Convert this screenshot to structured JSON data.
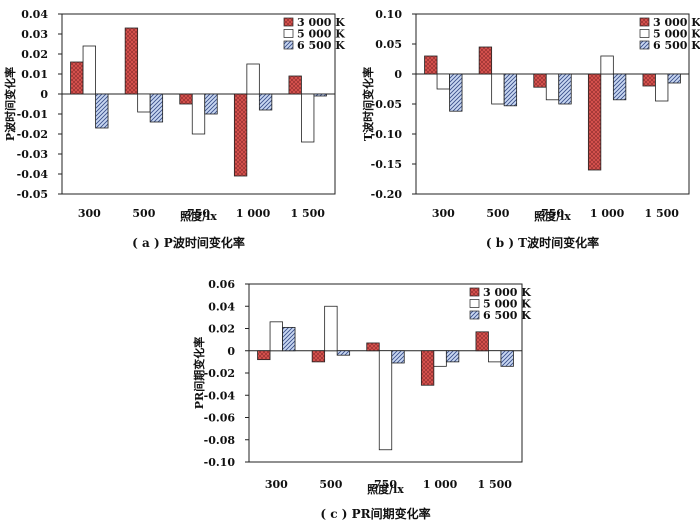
{
  "series_styles": [
    {
      "fill": "#d9534f",
      "pattern": "cross"
    },
    {
      "fill": "#ffffff",
      "pattern": "none"
    },
    {
      "fill": "#c9d8f2",
      "pattern": "diag"
    }
  ],
  "chart_data": [
    {
      "type": "bar",
      "id": "a",
      "caption": "( a ) P波时间变化率",
      "xlabel": "照度/lx",
      "ylabel": "P波时间变化率",
      "categories": [
        "300",
        "500",
        "750",
        "1 000",
        "1 500"
      ],
      "series": [
        {
          "name": "3 000 K",
          "values": [
            0.016,
            0.033,
            -0.005,
            -0.041,
            0.009
          ]
        },
        {
          "name": "5 000 K",
          "values": [
            0.024,
            -0.009,
            -0.02,
            0.015,
            -0.024
          ]
        },
        {
          "name": "6 500 K",
          "values": [
            -0.017,
            -0.014,
            -0.01,
            -0.008,
            -0.001
          ]
        }
      ],
      "ylim": [
        -0.05,
        0.04
      ],
      "yticks": [
        0.04,
        0.03,
        0.02,
        0.01,
        0,
        -0.01,
        -0.02,
        -0.03,
        -0.04,
        -0.05
      ],
      "ytick_labels": [
        "0.04",
        "0.03",
        "0.02",
        "0.01",
        "0",
        "-0.01",
        "-0.02",
        "-0.03",
        "-0.04",
        "-0.05"
      ],
      "legend": "top-right"
    },
    {
      "type": "bar",
      "id": "b",
      "caption": "( b ) T波时间变化率",
      "xlabel": "照度/lx",
      "ylabel": "T波时间变化率",
      "categories": [
        "300",
        "500",
        "750",
        "1 000",
        "1 500"
      ],
      "series": [
        {
          "name": "3 000 K",
          "values": [
            0.03,
            0.045,
            -0.022,
            -0.16,
            -0.02
          ]
        },
        {
          "name": "5 000 K",
          "values": [
            -0.025,
            -0.05,
            -0.043,
            0.03,
            -0.045
          ]
        },
        {
          "name": "6 500 K",
          "values": [
            -0.062,
            -0.053,
            -0.05,
            -0.043,
            -0.015
          ]
        }
      ],
      "ylim": [
        -0.2,
        0.1
      ],
      "yticks": [
        0.1,
        0.05,
        0,
        -0.05,
        -0.1,
        -0.15,
        -0.2
      ],
      "ytick_labels": [
        "0.10",
        "0.05",
        "0",
        "-0.05",
        "-0.10",
        "-0.15",
        "-0.20"
      ],
      "legend": "top-right"
    },
    {
      "type": "bar",
      "id": "c",
      "caption": "( c ) PR间期变化率",
      "xlabel": "照度/lx",
      "ylabel": "PR间期变化率",
      "categories": [
        "300",
        "500",
        "750",
        "1 000",
        "1 500"
      ],
      "series": [
        {
          "name": "3 000 K",
          "values": [
            -0.008,
            -0.01,
            0.007,
            -0.031,
            0.017
          ]
        },
        {
          "name": "5 000 K",
          "values": [
            0.026,
            0.04,
            -0.089,
            -0.014,
            -0.01
          ]
        },
        {
          "name": "6 500 K",
          "values": [
            0.021,
            -0.004,
            -0.011,
            -0.01,
            -0.014
          ]
        }
      ],
      "ylim": [
        -0.1,
        0.06
      ],
      "yticks": [
        0.06,
        0.04,
        0.02,
        0,
        -0.02,
        -0.04,
        -0.06,
        -0.08,
        -0.1
      ],
      "ytick_labels": [
        "0.06",
        "0.04",
        "0.02",
        "0",
        "-0.02",
        "-0.04",
        "-0.06",
        "-0.08",
        "-0.10"
      ],
      "legend": "top-right"
    }
  ]
}
